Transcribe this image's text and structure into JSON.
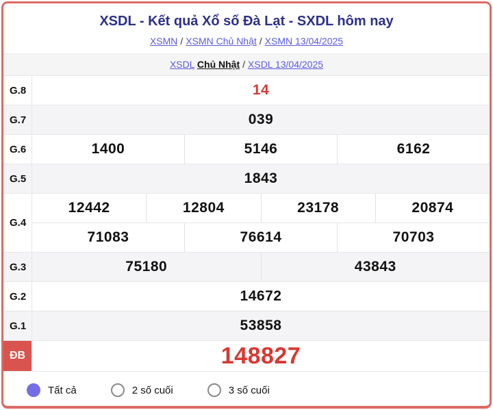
{
  "header": {
    "title": "XSDL - Kết quả Xổ số Đà Lạt - SXDL hôm nay",
    "breadcrumb1": [
      {
        "label": "XSMN"
      },
      {
        "label": "XSMN Chủ Nhật"
      },
      {
        "label": "XSMN 13/04/2025"
      }
    ],
    "breadcrumb_separator": "/",
    "breadcrumb2": {
      "link1": "XSDL",
      "bold": "Chủ Nhật",
      "link2": "XSDL 13/04/2025"
    }
  },
  "results": {
    "rows": [
      {
        "label": "G.8",
        "groups": [
          [
            "14"
          ]
        ],
        "highlight": "red"
      },
      {
        "label": "G.7",
        "groups": [
          [
            "039"
          ]
        ]
      },
      {
        "label": "G.6",
        "groups": [
          [
            "1400",
            "5146",
            "6162"
          ]
        ]
      },
      {
        "label": "G.5",
        "groups": [
          [
            "1843"
          ]
        ]
      },
      {
        "label": "G.4",
        "groups": [
          [
            "12442",
            "12804",
            "23178",
            "20874"
          ],
          [
            "71083",
            "76614",
            "70703"
          ]
        ]
      },
      {
        "label": "G.3",
        "groups": [
          [
            "75180",
            "43843"
          ]
        ]
      },
      {
        "label": "G.2",
        "groups": [
          [
            "14672"
          ]
        ]
      },
      {
        "label": "G.1",
        "groups": [
          [
            "53858"
          ]
        ]
      },
      {
        "label": "ĐB",
        "groups": [
          [
            "148827"
          ]
        ],
        "highlight": "red-large",
        "label_style": "red"
      }
    ]
  },
  "filters": {
    "options": [
      {
        "label": "Tất cả",
        "selected": true
      },
      {
        "label": "2 số cuối",
        "selected": false
      },
      {
        "label": "3 số cuối",
        "selected": false
      }
    ]
  },
  "colors": {
    "border": "#dd6a64",
    "title": "#2c3189",
    "link": "#5a59e0",
    "red_number": "#d93831",
    "special_label_bg": "#d9534f",
    "alt_row_bg": "#f4f4f6",
    "radio_selected": "#736ee6"
  }
}
